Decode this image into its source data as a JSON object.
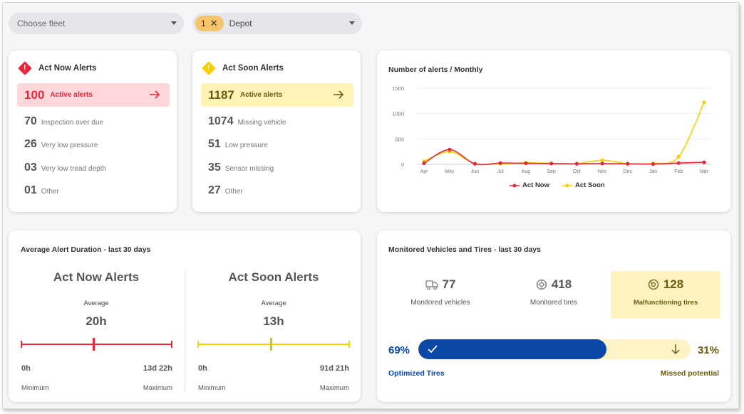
{
  "filters": {
    "fleet_placeholder": "Choose fleet",
    "depot_count": "1",
    "depot_label": "Depot"
  },
  "act_now": {
    "title": "Act Now Alerts",
    "active_count": "100",
    "active_label": "Active alerts",
    "items": [
      {
        "count": "70",
        "label": "Inspection over due"
      },
      {
        "count": "26",
        "label": "Very low pressure"
      },
      {
        "count": "03",
        "label": "Very low tread depth"
      },
      {
        "count": "01",
        "label": "Other"
      }
    ]
  },
  "act_soon": {
    "title": "Act Soon Alerts",
    "active_count": "1187",
    "active_label": "Active alerts",
    "items": [
      {
        "count": "1074",
        "label": "Missing vehicle"
      },
      {
        "count": "51",
        "label": "Low pressure"
      },
      {
        "count": "35",
        "label": "Sensor missing"
      },
      {
        "count": "27",
        "label": "Other"
      }
    ]
  },
  "chart_data": {
    "type": "line",
    "title": "Number of alerts / Monthly",
    "x": [
      "Apr",
      "May",
      "Jun",
      "Jul",
      "Aug",
      "Sep",
      "Oct",
      "Nov",
      "Dec",
      "Jan",
      "Feb",
      "Mar"
    ],
    "yticks": [
      0,
      500,
      1000,
      1500
    ],
    "ylim": [
      0,
      1500
    ],
    "series": [
      {
        "name": "Act Now",
        "color": "#e8273a",
        "values": [
          20,
          290,
          10,
          25,
          20,
          15,
          10,
          15,
          10,
          5,
          25,
          40
        ]
      },
      {
        "name": "Act Soon",
        "color": "#f7d000",
        "values": [
          60,
          250,
          15,
          10,
          30,
          20,
          15,
          80,
          15,
          20,
          150,
          1220
        ]
      }
    ],
    "legend": "bottom"
  },
  "duration": {
    "title": "Average Alert Duration - last 30 days",
    "avg_label": "Average",
    "min_label": "Minimum",
    "max_label": "Maximum",
    "now": {
      "title": "Act Now Alerts",
      "avg": "20h",
      "min": "0h",
      "max": "13d 22h",
      "fraction": 0.48
    },
    "soon": {
      "title": "Act Soon Alerts",
      "avg": "13h",
      "min": "0h",
      "max": "91d 21h",
      "fraction": 0.48
    }
  },
  "monitored": {
    "title": "Monitored Vehicles and Tires - last 30 days",
    "vehicles": {
      "count": "77",
      "label": "Monitored vehicles"
    },
    "tires": {
      "count": "418",
      "label": "Monitored tires"
    },
    "malfunctioning": {
      "count": "128",
      "label": "Malfunctioning tires"
    },
    "optimized_pct": "69%",
    "missed_pct": "31%",
    "optimized_fraction": 0.69,
    "optimized_label": "Optimized Tires",
    "missed_label": "Missed potential"
  },
  "colors": {
    "red": "#e8273a",
    "yellow": "#f7d000",
    "blue": "#0b48a8",
    "olive": "#6b5a10"
  }
}
